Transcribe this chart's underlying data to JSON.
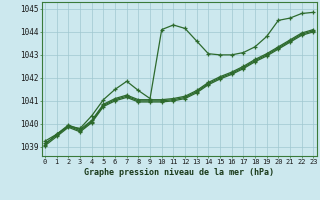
{
  "title": "Graphe pression niveau de la mer (hPa)",
  "background_color": "#cce8ee",
  "grid_color": "#a0c8d0",
  "line_color": "#2d6a2d",
  "x_ticks": [
    0,
    1,
    2,
    3,
    4,
    5,
    6,
    7,
    8,
    9,
    10,
    11,
    12,
    13,
    14,
    15,
    16,
    17,
    18,
    19,
    20,
    21,
    22,
    23
  ],
  "y_ticks": [
    1039,
    1040,
    1041,
    1042,
    1043,
    1044,
    1045
  ],
  "ylim": [
    1038.6,
    1045.3
  ],
  "xlim": [
    -0.3,
    23.3
  ],
  "series1_x": [
    0,
    1,
    2,
    3,
    4,
    5,
    6,
    7,
    8,
    9,
    10,
    11,
    12,
    13,
    14,
    15,
    16,
    17,
    18,
    19,
    20,
    21,
    22,
    23
  ],
  "series1_y": [
    1039.1,
    1039.55,
    1039.9,
    1039.8,
    1040.35,
    1041.05,
    1041.5,
    1041.85,
    1041.45,
    1041.1,
    1044.1,
    1044.3,
    1044.15,
    1043.6,
    1043.05,
    1043.0,
    1043.0,
    1043.1,
    1043.35,
    1043.8,
    1044.5,
    1044.6,
    1044.8,
    1044.85
  ],
  "series2_x": [
    0,
    1,
    2,
    3,
    4,
    5,
    6,
    7,
    8,
    9,
    10,
    11,
    12,
    13,
    14,
    15,
    16,
    17,
    18,
    19,
    20,
    21,
    22,
    23
  ],
  "series2_y": [
    1039.25,
    1039.55,
    1039.95,
    1039.75,
    1040.15,
    1040.85,
    1041.1,
    1041.25,
    1041.05,
    1041.05,
    1041.05,
    1041.1,
    1041.2,
    1041.45,
    1041.8,
    1042.05,
    1042.25,
    1042.5,
    1042.8,
    1043.05,
    1043.35,
    1043.65,
    1043.95,
    1044.1
  ],
  "series3_x": [
    0,
    1,
    2,
    3,
    4,
    5,
    6,
    7,
    8,
    9,
    10,
    11,
    12,
    13,
    14,
    15,
    16,
    17,
    18,
    19,
    20,
    21,
    22,
    23
  ],
  "series3_y": [
    1039.15,
    1039.5,
    1039.9,
    1039.7,
    1040.1,
    1040.8,
    1041.05,
    1041.2,
    1041.0,
    1041.0,
    1041.0,
    1041.05,
    1041.15,
    1041.4,
    1041.75,
    1042.0,
    1042.2,
    1042.45,
    1042.75,
    1043.0,
    1043.3,
    1043.6,
    1043.9,
    1044.05
  ],
  "series4_x": [
    0,
    1,
    2,
    3,
    4,
    5,
    6,
    7,
    8,
    9,
    10,
    11,
    12,
    13,
    14,
    15,
    16,
    17,
    18,
    19,
    20,
    21,
    22,
    23
  ],
  "series4_y": [
    1039.05,
    1039.45,
    1039.85,
    1039.65,
    1040.05,
    1040.75,
    1041.0,
    1041.15,
    1040.95,
    1040.95,
    1040.95,
    1041.0,
    1041.1,
    1041.35,
    1041.7,
    1041.95,
    1042.15,
    1042.4,
    1042.7,
    1042.95,
    1043.25,
    1043.55,
    1043.85,
    1044.0
  ]
}
